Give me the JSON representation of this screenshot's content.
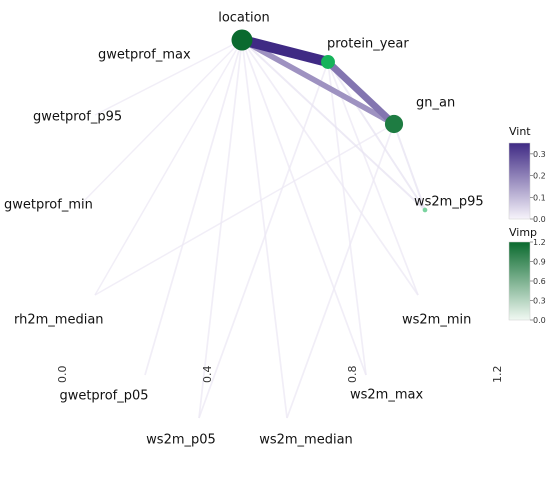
{
  "chart_data": {
    "type": "network",
    "x_ticks": [
      "0.0",
      "0.4",
      "0.8",
      "1.2"
    ],
    "nodes": [
      {
        "name": "location",
        "vimp": 1.2
      },
      {
        "name": "protein_year",
        "vimp": 0.7
      },
      {
        "name": "gn_an",
        "vimp": 1.0
      },
      {
        "name": "ws2m_p95",
        "vimp": 0.05
      },
      {
        "name": "ws2m_min",
        "vimp": 0.0
      },
      {
        "name": "ws2m_max",
        "vimp": 0.0
      },
      {
        "name": "ws2m_median",
        "vimp": 0.0
      },
      {
        "name": "ws2m_p05",
        "vimp": 0.0
      },
      {
        "name": "gwetprof_p05",
        "vimp": 0.0
      },
      {
        "name": "rh2m_median",
        "vimp": 0.0
      },
      {
        "name": "gwetprof_min",
        "vimp": 0.0
      },
      {
        "name": "gwetprof_p95",
        "vimp": 0.0
      },
      {
        "name": "gwetprof_max",
        "vimp": 0.0
      }
    ],
    "edges": [
      {
        "source": "location",
        "target": "protein_year",
        "vint": 0.35
      },
      {
        "source": "location",
        "target": "gn_an",
        "vint": 0.17
      },
      {
        "source": "protein_year",
        "target": "gn_an",
        "vint": 0.22
      },
      {
        "source": "location",
        "target": "ws2m_p95",
        "vint": 0.03
      },
      {
        "source": "location",
        "target": "ws2m_min",
        "vint": 0.02
      },
      {
        "source": "location",
        "target": "ws2m_max",
        "vint": 0.02
      },
      {
        "source": "location",
        "target": "ws2m_median",
        "vint": 0.02
      },
      {
        "source": "location",
        "target": "ws2m_p05",
        "vint": 0.02
      },
      {
        "source": "location",
        "target": "gwetprof_p05",
        "vint": 0.02
      },
      {
        "source": "location",
        "target": "rh2m_median",
        "vint": 0.01
      },
      {
        "source": "location",
        "target": "gwetprof_min",
        "vint": 0.01
      },
      {
        "source": "location",
        "target": "gwetprof_p95",
        "vint": 0.01
      },
      {
        "source": "protein_year",
        "target": "ws2m_p95",
        "vint": 0.03
      },
      {
        "source": "protein_year",
        "target": "ws2m_min",
        "vint": 0.02
      },
      {
        "source": "protein_year",
        "target": "ws2m_max",
        "vint": 0.02
      },
      {
        "source": "protein_year",
        "target": "ws2m_p05",
        "vint": 0.02
      },
      {
        "source": "gn_an",
        "target": "ws2m_p95",
        "vint": 0.03
      },
      {
        "source": "gn_an",
        "target": "ws2m_median",
        "vint": 0.02
      },
      {
        "source": "gn_an",
        "target": "rh2m_median",
        "vint": 0.01
      }
    ],
    "legends": {
      "vint": {
        "title": "Vint",
        "min": 0.0,
        "max": 0.35,
        "ticks": [
          "0.3",
          "0.2",
          "0.1",
          "0.0"
        ],
        "tick_values": [
          0.3,
          0.2,
          0.1,
          0.0
        ],
        "color_low": "#f7f4fb",
        "color_high": "#3f2a84"
      },
      "vimp": {
        "title": "Vimp",
        "min": 0.0,
        "max": 1.2,
        "ticks": [
          "1.2",
          "0.9",
          "0.6",
          "0.3",
          "0.0"
        ],
        "tick_values": [
          1.2,
          0.9,
          0.6,
          0.3,
          0.0
        ],
        "color_low": "#f1f9f3",
        "color_high": "#0a6a2e"
      }
    }
  }
}
